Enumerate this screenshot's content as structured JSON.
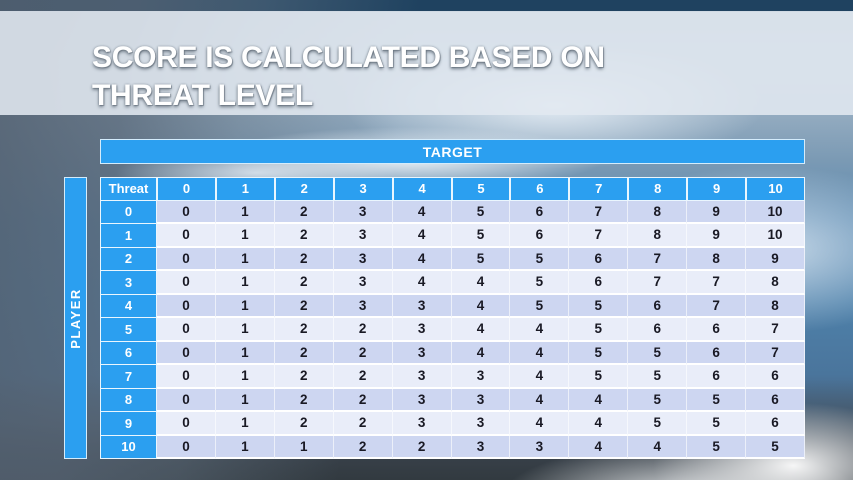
{
  "title": {
    "line1": "SCORE IS CALCULATED BASED ON",
    "line2": "THREAT LEVEL"
  },
  "table": {
    "target_label": "TARGET",
    "player_label": "PLAYER",
    "corner_label": "Threat",
    "column_headers": [
      "0",
      "1",
      "2",
      "3",
      "4",
      "5",
      "6",
      "7",
      "8",
      "9",
      "10"
    ],
    "rows": [
      {
        "header": "0",
        "values": [
          0,
          1,
          2,
          3,
          4,
          5,
          6,
          7,
          8,
          9,
          10
        ]
      },
      {
        "header": "1",
        "values": [
          0,
          1,
          2,
          3,
          4,
          5,
          6,
          7,
          8,
          9,
          10
        ]
      },
      {
        "header": "2",
        "values": [
          0,
          1,
          2,
          3,
          4,
          5,
          5,
          6,
          7,
          8,
          9
        ]
      },
      {
        "header": "3",
        "values": [
          0,
          1,
          2,
          3,
          4,
          4,
          5,
          6,
          7,
          7,
          8
        ]
      },
      {
        "header": "4",
        "values": [
          0,
          1,
          2,
          3,
          3,
          4,
          5,
          5,
          6,
          7,
          8
        ]
      },
      {
        "header": "5",
        "values": [
          0,
          1,
          2,
          2,
          3,
          4,
          4,
          5,
          6,
          6,
          7
        ]
      },
      {
        "header": "6",
        "values": [
          0,
          1,
          2,
          2,
          3,
          4,
          4,
          5,
          5,
          6,
          7
        ]
      },
      {
        "header": "7",
        "values": [
          0,
          1,
          2,
          2,
          3,
          3,
          4,
          5,
          5,
          6,
          6
        ]
      },
      {
        "header": "8",
        "values": [
          0,
          1,
          2,
          2,
          3,
          3,
          4,
          4,
          5,
          5,
          6
        ]
      },
      {
        "header": "9",
        "values": [
          0,
          1,
          2,
          2,
          3,
          3,
          4,
          4,
          5,
          5,
          6
        ]
      },
      {
        "header": "10",
        "values": [
          0,
          1,
          1,
          2,
          2,
          3,
          3,
          4,
          4,
          5,
          5
        ]
      }
    ]
  },
  "colors": {
    "accent_blue": "#2b9ff0",
    "band_dark": "#cdd6f1",
    "band_light": "#e9edf9",
    "cell_text": "#191924",
    "header_text": "#ffffff",
    "title_text": "#ffffff"
  }
}
